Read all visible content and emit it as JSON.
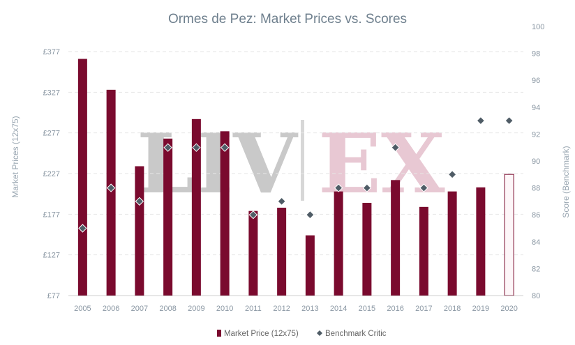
{
  "chart_data": {
    "type": "bar",
    "title": "Ormes de Pez: Market Prices vs. Scores",
    "categories": [
      "2005",
      "2006",
      "2007",
      "2008",
      "2009",
      "2010",
      "2011",
      "2012",
      "2013",
      "2014",
      "2015",
      "2016",
      "2017",
      "2018",
      "2019",
      "2020"
    ],
    "ylabel_left": "Market Prices (12x75)",
    "ylabel_right": "Score (Benchmark)",
    "y_left": {
      "ticks": [
        "£77",
        "£127",
        "£177",
        "£227",
        "£277",
        "£327",
        "£377"
      ],
      "ylim": [
        77,
        377
      ]
    },
    "y_right": {
      "ticks": [
        "80",
        "82",
        "84",
        "86",
        "88",
        "90",
        "92",
        "94",
        "96",
        "98",
        "100"
      ],
      "ylim": [
        80,
        100
      ]
    },
    "series": [
      {
        "name": "Market Price (12x75)",
        "kind": "bar",
        "axis": "left",
        "color": "#7a0a2e",
        "values": [
          368,
          330,
          236,
          270,
          294,
          279,
          181,
          185,
          151,
          205,
          191,
          219,
          186,
          205,
          210,
          226
        ],
        "hollow_last": true
      },
      {
        "name": "Benchmark Critic",
        "kind": "scatter",
        "axis": "right",
        "color": "#4f5c66",
        "values": [
          85,
          88,
          87,
          91,
          91,
          91,
          86,
          87,
          86,
          88,
          88,
          91,
          88,
          89,
          93,
          93
        ]
      }
    ],
    "grid": true,
    "legend": "bottom-center"
  },
  "watermark": {
    "left": "LIV",
    "right": "EX",
    "left_color": "#c9c9c9",
    "right_color": "#e8c8d3"
  }
}
